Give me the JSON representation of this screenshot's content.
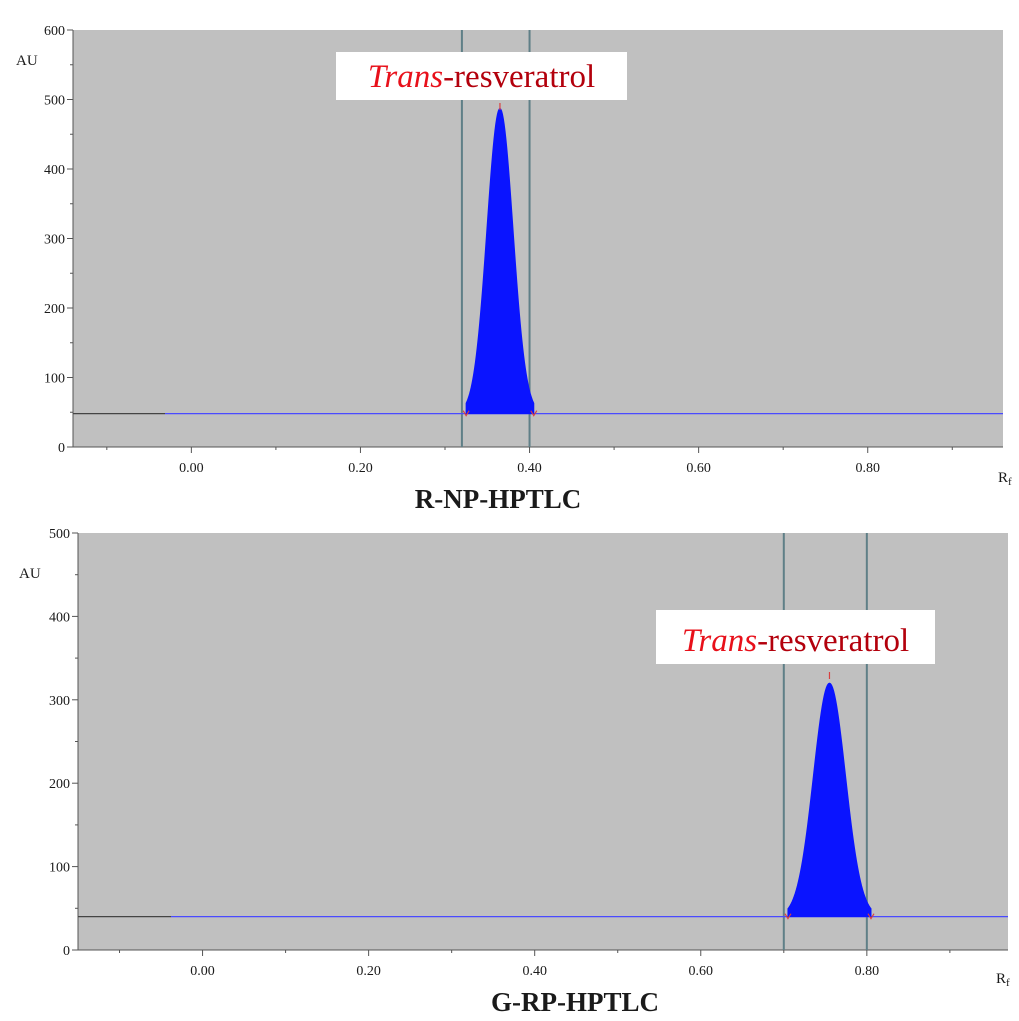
{
  "chart_data": [
    {
      "type": "line",
      "title": "R-NP-HPTLC",
      "xlabel": "Rf",
      "x_label_main": "R",
      "x_label_sub": "f",
      "ylabel": "AU",
      "xlim": [
        -0.14,
        0.96
      ],
      "ylim": [
        0,
        600
      ],
      "xticks": [
        0.0,
        0.2,
        0.4,
        0.6,
        0.8
      ],
      "xtick_labels": [
        "0.00",
        "0.20",
        "0.40",
        "0.60",
        "0.80"
      ],
      "yticks": [
        0,
        100,
        200,
        300,
        400,
        500,
        600
      ],
      "ytick_labels": [
        "0",
        "100",
        "200",
        "300",
        "400",
        "500",
        "600"
      ],
      "baseline": 48,
      "peak": {
        "label_italic": "Trans",
        "label_rest": "-resveratrol",
        "rf_center": 0.365,
        "rf_start": 0.325,
        "rf_end": 0.405,
        "height": 487
      },
      "integration_lines_rf": [
        0.32,
        0.4
      ],
      "colors": {
        "peak_fill": "#0a14ff",
        "baseline": "#4a4aff",
        "background": "#c0c0c0",
        "integration_line": "#5f7f87",
        "marker": "#d84040"
      }
    },
    {
      "type": "line",
      "title": "G-RP-HPTLC",
      "xlabel": "Rf",
      "x_label_main": "R",
      "x_label_sub": "f",
      "ylabel": "AU",
      "xlim": [
        -0.15,
        0.97
      ],
      "ylim": [
        0,
        500
      ],
      "xticks": [
        0.0,
        0.2,
        0.4,
        0.6,
        0.8
      ],
      "xtick_labels": [
        "0.00",
        "0.20",
        "0.40",
        "0.60",
        "0.80"
      ],
      "yticks": [
        0,
        100,
        200,
        300,
        400,
        500
      ],
      "ytick_labels": [
        "0",
        "100",
        "200",
        "300",
        "400",
        "500"
      ],
      "baseline": 40,
      "peak": {
        "label_italic": "Trans",
        "label_rest": "-resveratrol",
        "rf_center": 0.755,
        "rf_start": 0.705,
        "rf_end": 0.805,
        "height": 320
      },
      "integration_lines_rf": [
        0.7,
        0.8
      ],
      "colors": {
        "peak_fill": "#0a14ff",
        "baseline": "#4a4aff",
        "background": "#c0c0c0",
        "integration_line": "#5f7f87",
        "marker": "#d84040"
      }
    }
  ]
}
